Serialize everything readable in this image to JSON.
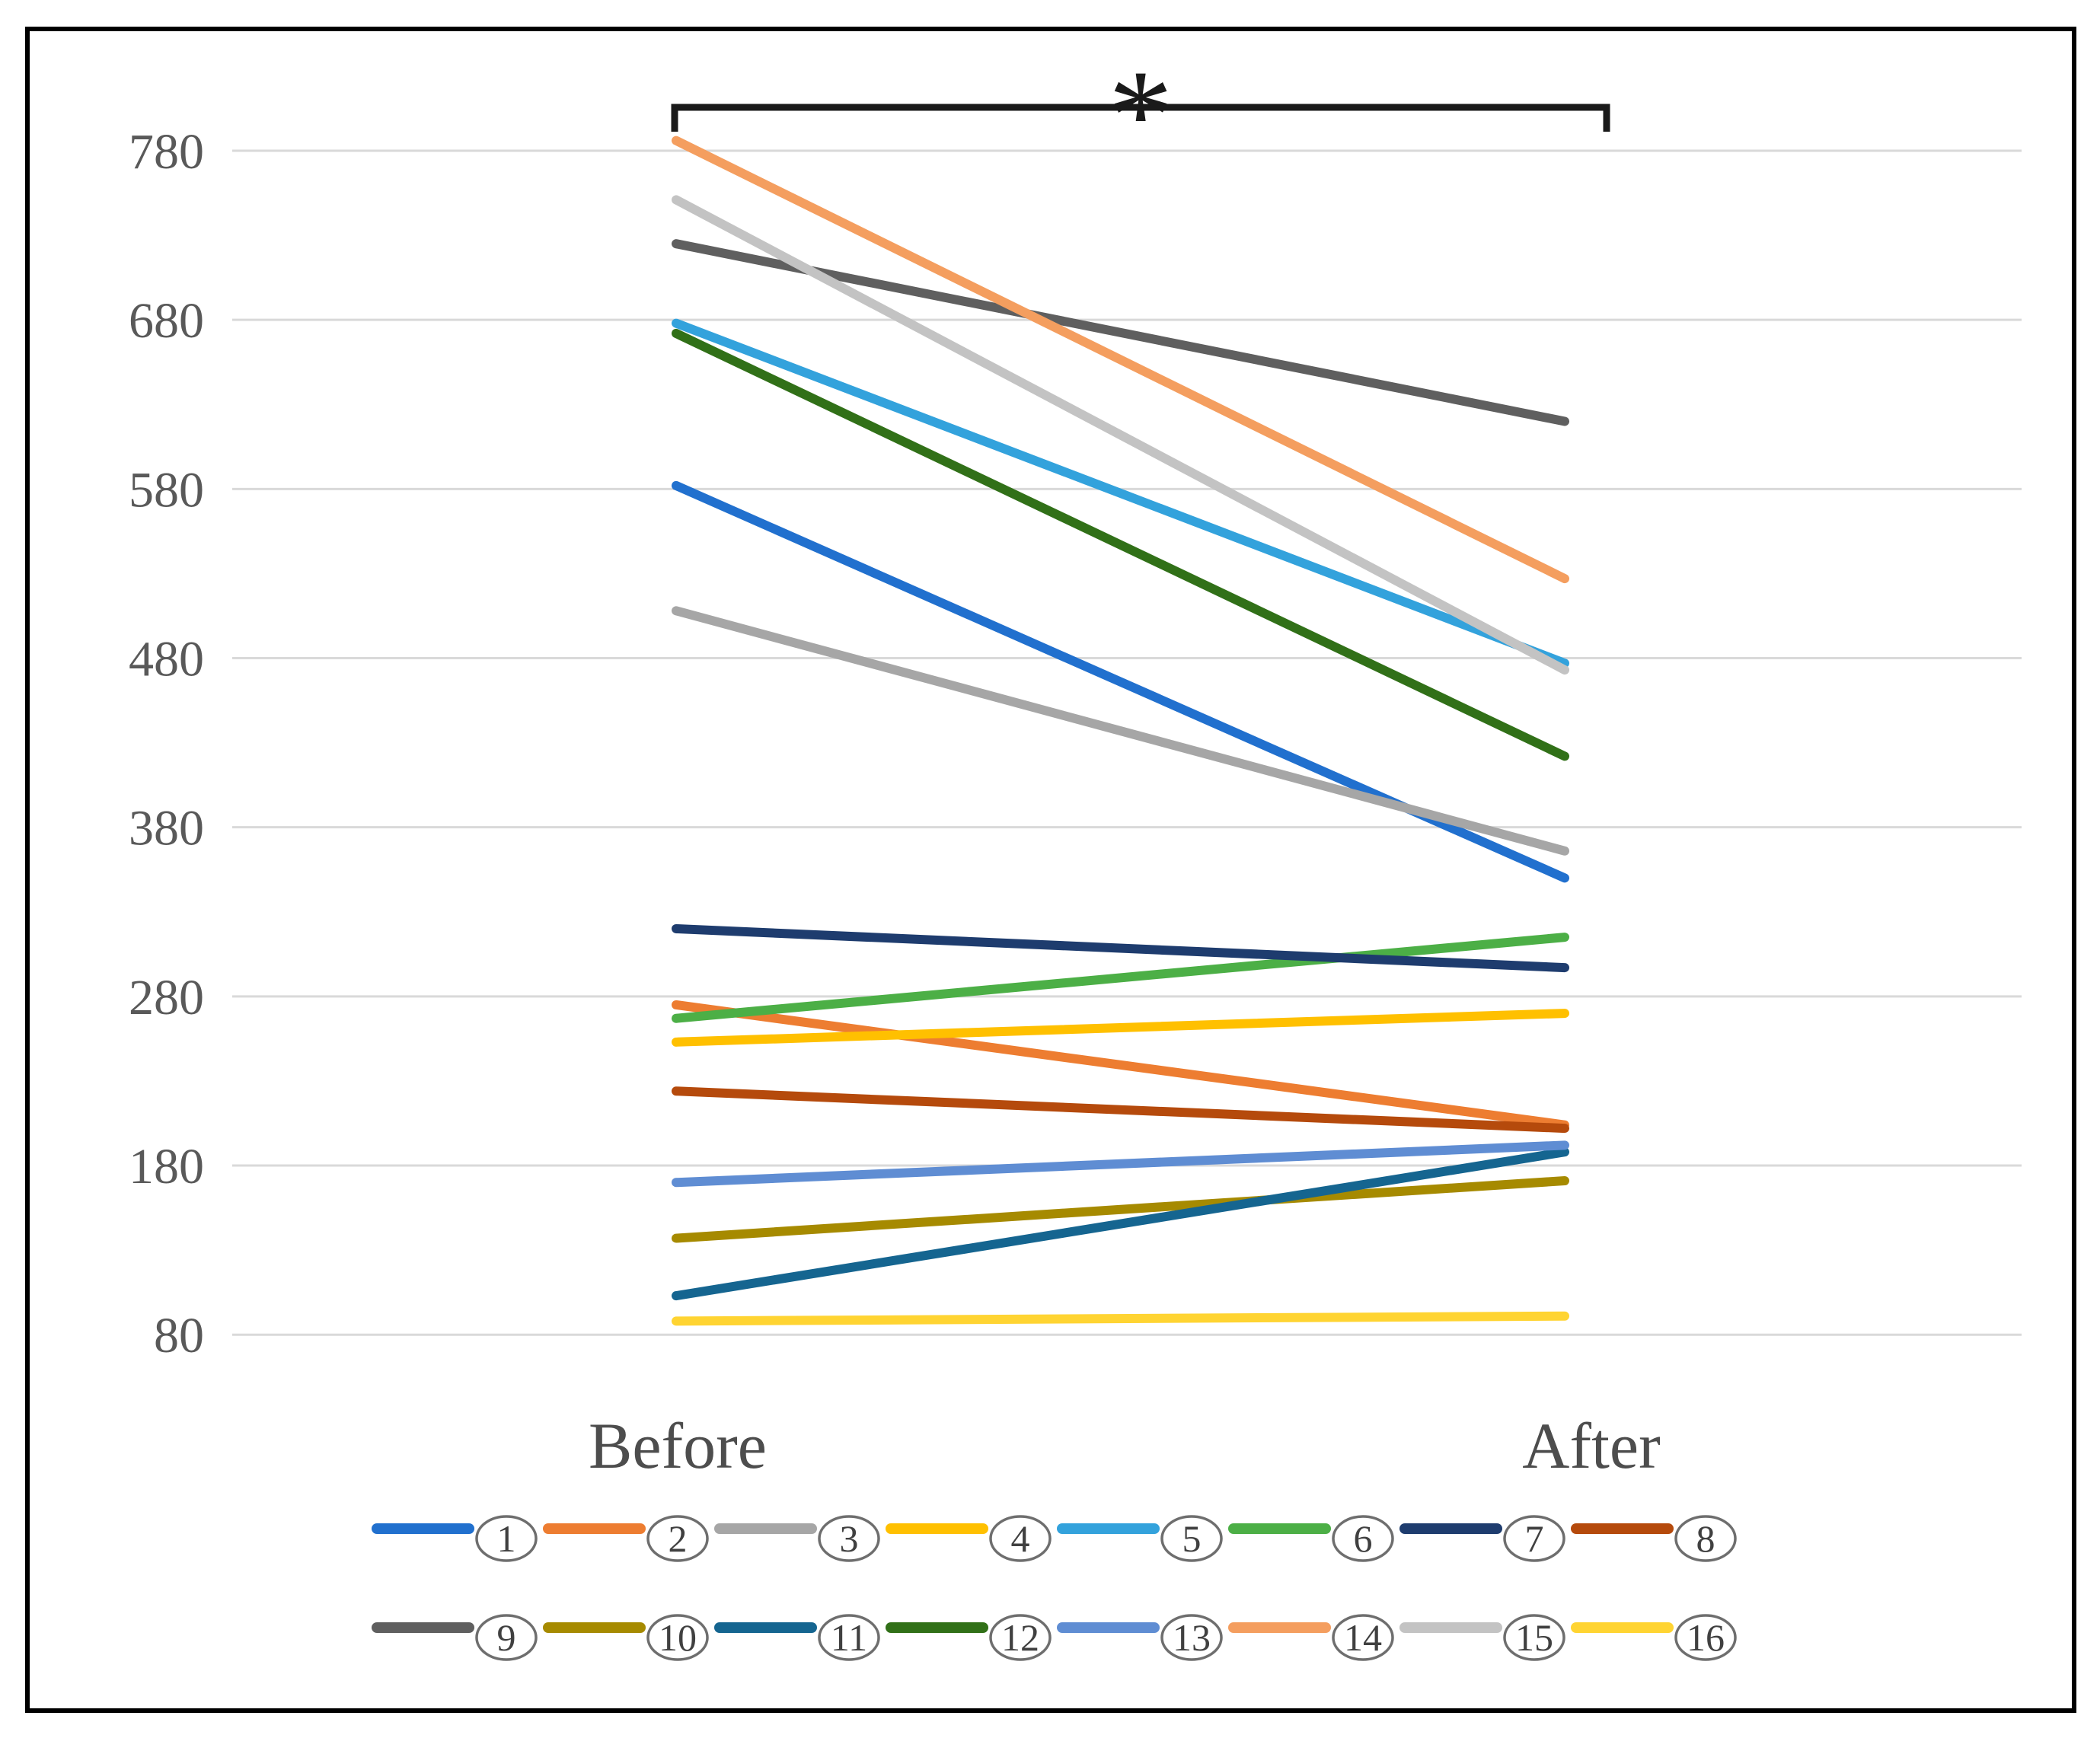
{
  "chart_data": {
    "type": "line",
    "subtype": "slope",
    "title": "",
    "xlabel": "",
    "ylabel": "",
    "categories": [
      "Before",
      "After"
    ],
    "yticks": [
      780,
      680,
      580,
      480,
      380,
      280,
      180,
      80
    ],
    "ylim": [
      80,
      780
    ],
    "grid": true,
    "legend_position": "bottom",
    "annotation": {
      "symbol": "*",
      "type": "significance-bracket",
      "spans": [
        "Before",
        "After"
      ]
    },
    "series": [
      {
        "name": "1",
        "legend_label": "①",
        "color": "#2170CE",
        "values": [
          582,
          350
        ]
      },
      {
        "name": "2",
        "legend_label": "②",
        "color": "#ED7D31",
        "values": [
          275,
          204
        ]
      },
      {
        "name": "3",
        "legend_label": "③",
        "color": "#A6A6A6",
        "values": [
          508,
          366
        ]
      },
      {
        "name": "4",
        "legend_label": "④",
        "color": "#FFC000",
        "values": [
          253,
          270
        ]
      },
      {
        "name": "5",
        "legend_label": "⑤",
        "color": "#33A2DC",
        "values": [
          678,
          477
        ]
      },
      {
        "name": "6",
        "legend_label": "⑥",
        "color": "#4CAF46",
        "values": [
          267,
          315
        ]
      },
      {
        "name": "7",
        "legend_label": "⑦",
        "color": "#1E3C6E",
        "values": [
          320,
          297
        ]
      },
      {
        "name": "8",
        "legend_label": "⑧",
        "color": "#B54A0C",
        "values": [
          224,
          202
        ]
      },
      {
        "name": "9",
        "legend_label": "⑨",
        "color": "#5F5F5F",
        "values": [
          725,
          620
        ]
      },
      {
        "name": "10",
        "legend_label": "⑩",
        "color": "#A68A00",
        "values": [
          137,
          171
        ]
      },
      {
        "name": "11",
        "legend_label": "⑪",
        "color": "#156590",
        "values": [
          103,
          188
        ]
      },
      {
        "name": "12",
        "legend_label": "⑫",
        "color": "#317018",
        "values": [
          672,
          422
        ]
      },
      {
        "name": "13",
        "legend_label": "⑬",
        "color": "#5F8DD3",
        "values": [
          170,
          192
        ]
      },
      {
        "name": "14",
        "legend_label": "⑭",
        "color": "#F49E5F",
        "values": [
          786,
          527
        ]
      },
      {
        "name": "15",
        "legend_label": "⑮",
        "color": "#C3C3C3",
        "values": [
          751,
          473
        ]
      },
      {
        "name": "16",
        "legend_label": "⑯",
        "color": "#FFD432",
        "values": [
          88,
          91
        ]
      }
    ]
  },
  "colors": {
    "background": "#FFFFFF",
    "frame_border": "#000000",
    "gridline": "#D9D9D9",
    "axis_text": "#595959",
    "category_text": "#4D4D4D",
    "bracket": "#1A1A1A",
    "asterisk": "#1A1A1A",
    "legend_circle_stroke": "#6E6E6E",
    "legend_number_text": "#404040"
  }
}
